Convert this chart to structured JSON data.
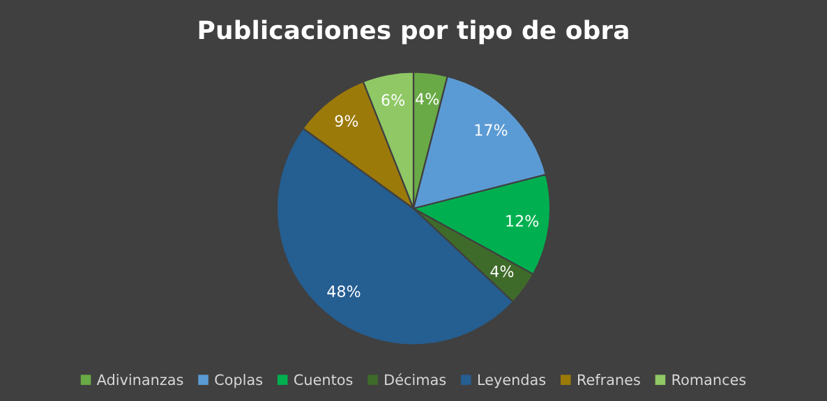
{
  "chart_data": {
    "type": "pie",
    "title": "Publicaciones por tipo de obra",
    "categories": [
      "Adivinanzas",
      "Coplas",
      "Cuentos",
      "Décimas",
      "Leyendas",
      "Refranes",
      "Romances"
    ],
    "values": [
      4,
      17,
      12,
      4,
      48,
      9,
      6
    ],
    "value_labels": [
      "4%",
      "17%",
      "12%",
      "4%",
      "48%",
      "9%",
      "6%"
    ],
    "colors": [
      "#6aaa46",
      "#5b9bd5",
      "#00b050",
      "#3f6b2a",
      "#255e91",
      "#9c7a0a",
      "#8fc865"
    ],
    "legend": "bottom"
  }
}
